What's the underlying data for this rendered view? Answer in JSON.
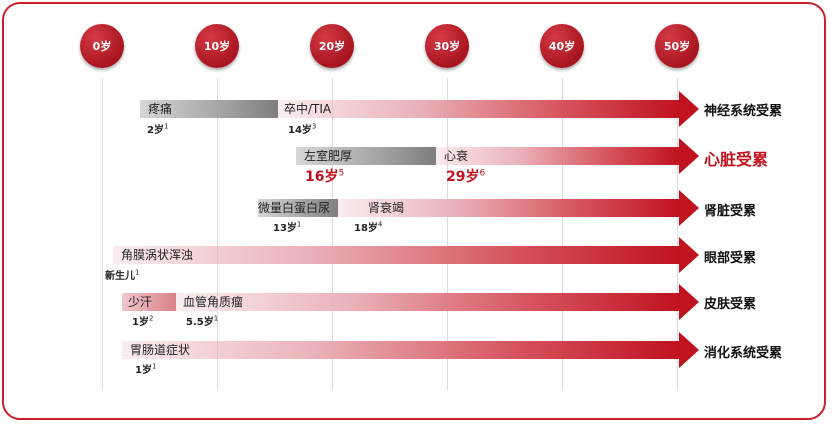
{
  "ages": [
    "0岁",
    "10岁",
    "20岁",
    "30岁",
    "40岁",
    "50岁"
  ],
  "rows": {
    "neuro": {
      "organ": "神经系统受累",
      "seg1_label": "疼痛",
      "seg2_label": "卒中/TIA",
      "note1": "2岁",
      "note1_sup": "1",
      "note2": "14岁",
      "note2_sup": "3"
    },
    "heart": {
      "organ": "心脏受累",
      "seg1_label": "左室肥厚",
      "seg2_label": "心衰",
      "note1": "16岁",
      "note1_sup": "5",
      "note2": "29岁",
      "note2_sup": "6"
    },
    "kidney": {
      "organ": "肾脏受累",
      "seg1_label": "微量白蛋白尿",
      "seg2_label": "肾衰竭",
      "note1": "13岁",
      "note1_sup": "1",
      "note2": "18岁",
      "note2_sup": "4"
    },
    "eye": {
      "organ": "眼部受累",
      "seg1_label": "角膜涡状浑浊",
      "note1": "新生儿",
      "note1_sup": "1"
    },
    "skin": {
      "organ": "皮肤受累",
      "seg1_label": "少汗",
      "seg2_label": "血管角质瘤",
      "note1": "1岁",
      "note1_sup": "2",
      "note2": "5.5岁",
      "note2_sup": "1"
    },
    "gi": {
      "organ": "消化系统受累",
      "seg1_label": "胃肠道症状",
      "note1": "1岁",
      "note1_sup": "1"
    }
  },
  "colors": {
    "accent": "#c0121f",
    "frame": "#c8202c"
  }
}
